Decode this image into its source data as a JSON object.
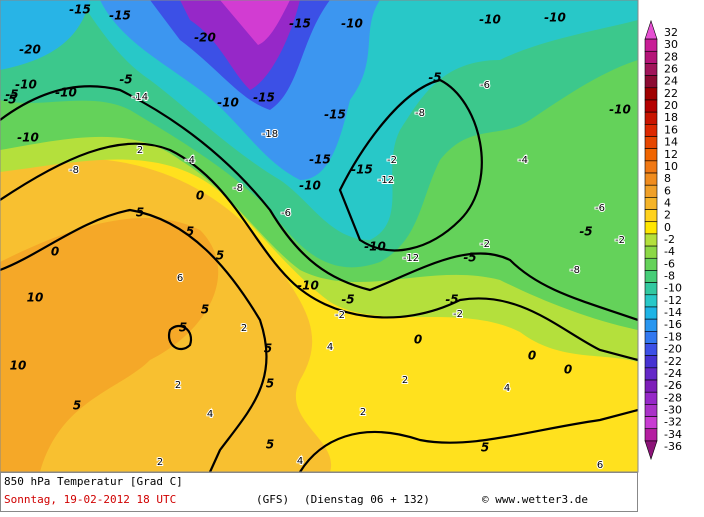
{
  "map": {
    "contour_labels": [
      -15,
      -15,
      -20,
      -20,
      -15,
      -10,
      -10,
      -15,
      -10,
      -10,
      -5,
      -10,
      -10,
      -5,
      -10,
      -15,
      -15,
      -10,
      -15,
      -10,
      -10,
      -5,
      -5,
      -5,
      -10,
      -5,
      -5,
      -5,
      0,
      0,
      0,
      0,
      5,
      5,
      5,
      5,
      5,
      5,
      0,
      10,
      10,
      5,
      5,
      5,
      5,
      -8,
      -8,
      -6,
      -12,
      -14,
      -18,
      -4,
      -2,
      -2,
      -6,
      -8,
      -2,
      -2,
      2,
      2,
      2,
      4,
      4,
      6,
      4,
      2,
      2,
      4,
      2,
      6,
      -12,
      -8,
      -6,
      -2,
      -4
    ]
  },
  "legend": {
    "values": [
      32,
      30,
      28,
      26,
      24,
      22,
      20,
      18,
      16,
      14,
      12,
      10,
      8,
      6,
      4,
      2,
      0,
      -2,
      -4,
      -6,
      -8,
      -10,
      -12,
      -14,
      -16,
      -18,
      -20,
      -22,
      -24,
      -26,
      -28,
      -30,
      -32,
      -34,
      -36
    ],
    "colors": [
      "#e650d2",
      "#c81e96",
      "#b41478",
      "#a0145a",
      "#8c0a32",
      "#a00000",
      "#b40000",
      "#c81400",
      "#dc2800",
      "#e64600",
      "#f06400",
      "#f07814",
      "#f08c1e",
      "#f0a028",
      "#f5b428",
      "#ffd21e",
      "#ffe600",
      "#b4e03c",
      "#8cd846",
      "#64d25a",
      "#46cd78",
      "#32c8a0",
      "#28c8c8",
      "#1eb4e6",
      "#2896f0",
      "#3278f0",
      "#3c50e6",
      "#4632d2",
      "#6428c8",
      "#7d1eb9",
      "#9628c8",
      "#aa32c8",
      "#c83cd2",
      "#b41ea0",
      "#8c1478"
    ]
  },
  "footer": {
    "title": "850 hPa Temperatur [Grad C]",
    "run": "Sonntag, 19-02-2012  18 UTC",
    "model": "(GFS)",
    "valid": "(Dienstag 06 + 132)",
    "credit": "© www.wetter3.de"
  }
}
